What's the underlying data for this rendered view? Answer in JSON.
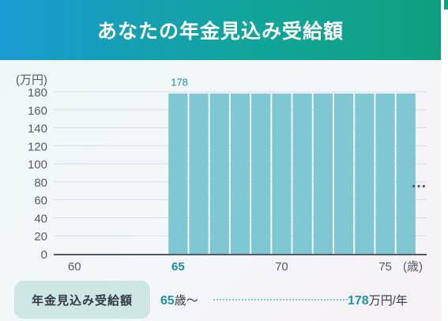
{
  "header": {
    "title": "あなたの年金見込み受給額"
  },
  "chart_data": {
    "type": "bar",
    "ylabel": "(万円)",
    "xlabel": "(歳)",
    "ylim": [
      0,
      180
    ],
    "yticks": [
      0,
      20,
      40,
      60,
      80,
      100,
      120,
      140,
      160,
      180
    ],
    "xlim": [
      59,
      77
    ],
    "xticks": [
      60,
      65,
      70,
      75
    ],
    "x": [
      65,
      66,
      67,
      68,
      69,
      70,
      71,
      72,
      73,
      74,
      75,
      76
    ],
    "values": [
      178,
      178,
      178,
      178,
      178,
      178,
      178,
      178,
      178,
      178,
      178,
      178
    ],
    "data_label": "178",
    "grid": true,
    "continuation_mark": "…",
    "bar_color": "#7fc8d3"
  },
  "summary": {
    "label": "年金見込み受給額",
    "start_age": "65",
    "age_suffix": "歳〜",
    "amount": "178",
    "amount_unit": "万円/年"
  }
}
